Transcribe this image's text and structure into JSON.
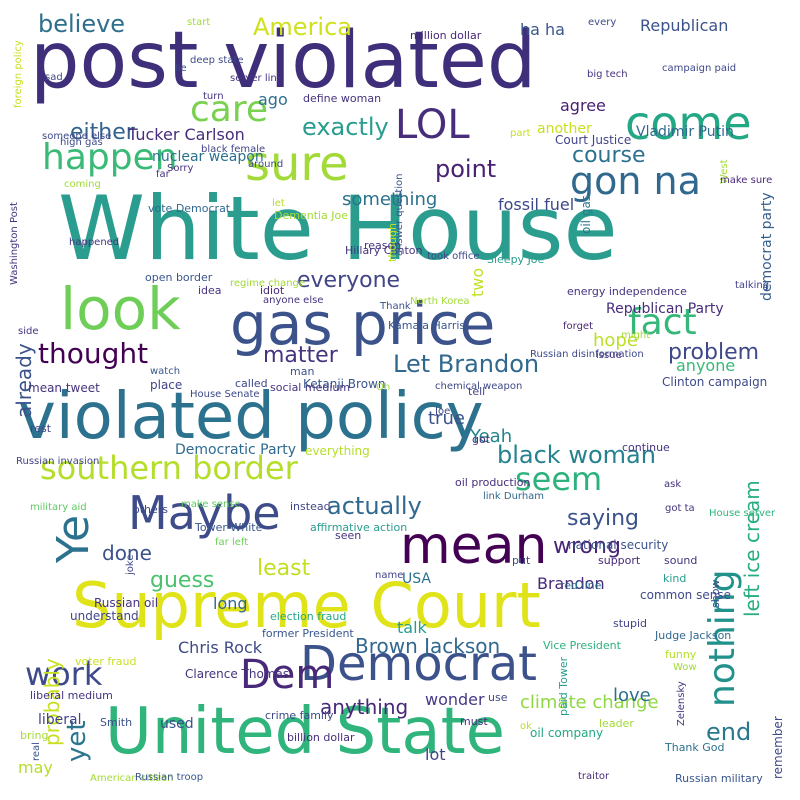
{
  "words": [
    {
      "text": "White House",
      "color": "#2a9d8f",
      "v": 0
    },
    {
      "text": "post violated",
      "color": "#3f2f7a",
      "v": 0
    },
    {
      "text": "violated policy",
      "color": "#2c728e",
      "v": 0
    },
    {
      "text": "Supreme Court",
      "color": "#dfe318",
      "v": 0
    },
    {
      "text": "United State",
      "color": "#2fb47c",
      "v": 0
    },
    {
      "text": "gas price",
      "color": "#3b528b",
      "v": 0
    },
    {
      "text": "sure",
      "color": "#a2da37",
      "v": 0
    },
    {
      "text": "look",
      "color": "#6ece58",
      "v": 0
    },
    {
      "text": "mean",
      "color": "#440154",
      "v": 0
    },
    {
      "text": "Maybe",
      "color": "#3e4c8a",
      "v": 0
    },
    {
      "text": "Democrat",
      "color": "#3b528b",
      "v": 0
    },
    {
      "text": "nothing",
      "color": "#21918c",
      "v": 1
    },
    {
      "text": "come",
      "color": "#22a884",
      "v": 0
    },
    {
      "text": "LOL",
      "color": "#472d7b",
      "v": 0
    },
    {
      "text": "care",
      "color": "#7ad151",
      "v": 0
    },
    {
      "text": "happen",
      "color": "#3aba76",
      "v": 0
    },
    {
      "text": "gon na",
      "color": "#31688e",
      "v": 0
    },
    {
      "text": "fact",
      "color": "#35b779",
      "v": 0
    },
    {
      "text": "southern border",
      "color": "#b5de2b",
      "v": 0
    },
    {
      "text": "Ye",
      "color": "#2c728e",
      "v": 1
    },
    {
      "text": "seem",
      "color": "#2db27d",
      "v": 0
    },
    {
      "text": "Dem",
      "color": "#482878",
      "v": 0
    },
    {
      "text": "work",
      "color": "#3f4a8a",
      "v": 0
    },
    {
      "text": "thought",
      "color": "#440154",
      "v": 0
    },
    {
      "text": "Let Brandon",
      "color": "#31688e",
      "v": 0
    },
    {
      "text": "black woman",
      "color": "#26828e",
      "v": 0
    },
    {
      "text": "matter",
      "color": "#46337f",
      "v": 0
    },
    {
      "text": "everyone",
      "color": "#414487",
      "v": 0
    },
    {
      "text": "point",
      "color": "#482173",
      "v": 0
    },
    {
      "text": "exactly",
      "color": "#2a9d8f",
      "v": 0
    },
    {
      "text": "either",
      "color": "#33638d",
      "v": 0
    },
    {
      "text": "America",
      "color": "#d0e11c",
      "v": 0
    },
    {
      "text": "believe",
      "color": "#2e6f8e",
      "v": 0
    },
    {
      "text": "course",
      "color": "#2c728e",
      "v": 0
    },
    {
      "text": "problem",
      "color": "#3e4989",
      "v": 0
    },
    {
      "text": "actually",
      "color": "#31688e",
      "v": 0
    },
    {
      "text": "saying",
      "color": "#3b528b",
      "v": 0
    },
    {
      "text": "wrong",
      "color": "#482475",
      "v": 0
    },
    {
      "text": "least",
      "color": "#c2df23",
      "v": 0
    },
    {
      "text": "guess",
      "color": "#4ac16d",
      "v": 0
    },
    {
      "text": "probably",
      "color": "#c8e020",
      "v": 1
    },
    {
      "text": "already",
      "color": "#3b528b",
      "v": 1
    },
    {
      "text": "left ice cream",
      "color": "#27ad81",
      "v": 1
    },
    {
      "text": "yet",
      "color": "#2a768e",
      "v": 1
    },
    {
      "text": "done",
      "color": "#3b528b",
      "v": 0
    },
    {
      "text": "Brown Jackson",
      "color": "#31688e",
      "v": 0
    },
    {
      "text": "Chris Rock",
      "color": "#3e4989",
      "v": 0
    },
    {
      "text": "anything",
      "color": "#482878",
      "v": 0
    },
    {
      "text": "climate change",
      "color": "#8fd744",
      "v": 0
    },
    {
      "text": "wonder",
      "color": "#443983",
      "v": 0
    },
    {
      "text": "end",
      "color": "#2a788e",
      "v": 0
    },
    {
      "text": "love",
      "color": "#2d708e",
      "v": 0
    },
    {
      "text": "Yeah",
      "color": "#25848e",
      "v": 0
    },
    {
      "text": "true",
      "color": "#3b528b",
      "v": 0
    },
    {
      "text": "hope",
      "color": "#bddf26",
      "v": 0
    },
    {
      "text": "anyone",
      "color": "#38b977",
      "v": 0
    },
    {
      "text": "something",
      "color": "#2c728e",
      "v": 0
    },
    {
      "text": "fossil fuel",
      "color": "#3e4989",
      "v": 0
    },
    {
      "text": "democrat party",
      "color": "#355f8d",
      "v": 1
    },
    {
      "text": "agree",
      "color": "#481f70",
      "v": 0
    },
    {
      "text": "Republican",
      "color": "#3b528b",
      "v": 0
    },
    {
      "text": "Republican Party",
      "color": "#472d7b",
      "v": 0
    },
    {
      "text": "Vladimir Putin",
      "color": "#31688e",
      "v": 0
    },
    {
      "text": "Tucker Carlson",
      "color": "#472d7b",
      "v": 0
    },
    {
      "text": "ha ha",
      "color": "#39568c",
      "v": 0
    },
    {
      "text": "ago",
      "color": "#2d708e",
      "v": 0
    },
    {
      "text": "two",
      "color": "#c2df23",
      "v": 1
    },
    {
      "text": "USA",
      "color": "#2c728e",
      "v": 0
    },
    {
      "text": "Brandon",
      "color": "#482878",
      "v": 0
    },
    {
      "text": "long",
      "color": "#31688e",
      "v": 0
    },
    {
      "text": "talk",
      "color": "#2a9d8f",
      "v": 0
    },
    {
      "text": "lot",
      "color": "#414487",
      "v": 0
    },
    {
      "text": "may",
      "color": "#b5de2b",
      "v": 0
    },
    {
      "text": "remember",
      "color": "#3e4989",
      "v": 1
    },
    {
      "text": "used",
      "color": "#3b528b",
      "v": 0
    },
    {
      "text": "Democratic Party",
      "color": "#2f6b8e",
      "v": 0
    },
    {
      "text": "Ketanji Brown",
      "color": "#39568c",
      "v": 0
    },
    {
      "text": "Clinton campaign",
      "color": "#3e4989",
      "v": 0
    },
    {
      "text": "Hillary Clinton",
      "color": "#46337f",
      "v": 0
    },
    {
      "text": "oil gas",
      "color": "#2a788e",
      "v": 1
    },
    {
      "text": "another",
      "color": "#c8e020",
      "v": 0
    },
    {
      "text": "Court Justice",
      "color": "#414487",
      "v": 0
    },
    {
      "text": "million dollar",
      "color": "#482878",
      "v": 0
    },
    {
      "text": "national security",
      "color": "#3b528b",
      "v": 0
    },
    {
      "text": "oil company",
      "color": "#22a884",
      "v": 0
    },
    {
      "text": "billion dollar",
      "color": "#472d7b",
      "v": 0
    },
    {
      "text": "crime family",
      "color": "#3e4989",
      "v": 0
    },
    {
      "text": "Clarence Thomas",
      "color": "#46337f",
      "v": 0
    },
    {
      "text": "liberal",
      "color": "#414487",
      "v": 0
    },
    {
      "text": "nuclear weapon",
      "color": "#2c728e",
      "v": 0
    },
    {
      "text": "vote Democrat",
      "color": "#31688e",
      "v": 0
    },
    {
      "text": "open border",
      "color": "#39568c",
      "v": 0
    },
    {
      "text": "idea",
      "color": "#46337f",
      "v": 0
    },
    {
      "text": "idiot",
      "color": "#482878",
      "v": 0
    },
    {
      "text": "define woman",
      "color": "#46337f",
      "v": 0
    },
    {
      "text": "understand",
      "color": "#414487",
      "v": 0
    },
    {
      "text": "Russian oil",
      "color": "#46337f",
      "v": 0
    },
    {
      "text": "liberal medium",
      "color": "#46337f",
      "v": 0
    },
    {
      "text": "election fraud",
      "color": "#22a884",
      "v": 0
    },
    {
      "text": "former President",
      "color": "#39568c",
      "v": 0
    },
    {
      "text": "Vice President",
      "color": "#2db27d",
      "v": 0
    },
    {
      "text": "Judge Jackson",
      "color": "#31688e",
      "v": 0
    },
    {
      "text": "common sense",
      "color": "#3e4989",
      "v": 0
    },
    {
      "text": "red line",
      "color": "#2c728e",
      "v": 0
    },
    {
      "text": "sound",
      "color": "#46337f",
      "v": 0
    },
    {
      "text": "support",
      "color": "#482878",
      "v": 0
    },
    {
      "text": "put",
      "color": "#414487",
      "v": 0
    },
    {
      "text": "must",
      "color": "#472d7b",
      "v": 0
    },
    {
      "text": "Thank God",
      "color": "#2d708e",
      "v": 0
    },
    {
      "text": "Russian military",
      "color": "#39568c",
      "v": 0
    },
    {
      "text": "mean tweet",
      "color": "#46337f",
      "v": 0
    },
    {
      "text": "called",
      "color": "#3e4989",
      "v": 0
    },
    {
      "text": "place",
      "color": "#414487",
      "v": 0
    },
    {
      "text": "social medium",
      "color": "#46337f",
      "v": 0
    },
    {
      "text": "man",
      "color": "#3b528b",
      "v": 0
    },
    {
      "text": "tell",
      "color": "#414487",
      "v": 0
    },
    {
      "text": "got",
      "color": "#472d7b",
      "v": 0
    },
    {
      "text": "rest",
      "color": "#414487",
      "v": 0
    },
    {
      "text": "everything",
      "color": "#b5de2b",
      "v": 0
    },
    {
      "text": "others",
      "color": "#3e4989",
      "v": 0
    },
    {
      "text": "instead",
      "color": "#414487",
      "v": 0
    },
    {
      "text": "make sense",
      "color": "#5ec962",
      "v": 0
    },
    {
      "text": "affirmative action",
      "color": "#2a9d8f",
      "v": 0
    },
    {
      "text": "oil production",
      "color": "#472d7b",
      "v": 0
    },
    {
      "text": "link Durham",
      "color": "#31688e",
      "v": 0
    },
    {
      "text": "Russian invasion",
      "color": "#414487",
      "v": 0
    },
    {
      "text": "military aid",
      "color": "#5ec962",
      "v": 0
    },
    {
      "text": "Tower White",
      "color": "#39568c",
      "v": 0
    },
    {
      "text": "far left",
      "color": "#6ece58",
      "v": 0
    },
    {
      "text": "joke",
      "color": "#3e4989",
      "v": 1
    },
    {
      "text": "name",
      "color": "#414487",
      "v": 0
    },
    {
      "text": "seen",
      "color": "#46337f",
      "v": 0
    },
    {
      "text": "kind",
      "color": "#2a9d8f",
      "v": 0
    },
    {
      "text": "show",
      "color": "#3e4989",
      "v": 1
    },
    {
      "text": "stupid",
      "color": "#414487",
      "v": 0
    },
    {
      "text": "funny",
      "color": "#b5de2b",
      "v": 0
    },
    {
      "text": "Wow",
      "color": "#a2da37",
      "v": 0
    },
    {
      "text": "Zelensky",
      "color": "#46337f",
      "v": 1
    },
    {
      "text": "Smith",
      "color": "#3b528b",
      "v": 0
    },
    {
      "text": "real",
      "color": "#3b528b",
      "v": 1
    },
    {
      "text": "bring",
      "color": "#a2da37",
      "v": 0
    },
    {
      "text": "voter fraud",
      "color": "#c8e020",
      "v": 0
    },
    {
      "text": "American citizen",
      "color": "#a2da37",
      "v": 0
    },
    {
      "text": "Russian troop",
      "color": "#39568c",
      "v": 0
    },
    {
      "text": "leader",
      "color": "#a2da37",
      "v": 0
    },
    {
      "text": "ok",
      "color": "#b5de2b",
      "v": 0
    },
    {
      "text": "use",
      "color": "#3e4989",
      "v": 0
    },
    {
      "text": "traitor",
      "color": "#472d7b",
      "v": 0
    },
    {
      "text": "paid Tower",
      "color": "#2a9d8f",
      "v": 1
    },
    {
      "text": "House server",
      "color": "#2fb47c",
      "v": 0
    },
    {
      "text": "got ta",
      "color": "#46337f",
      "v": 0
    },
    {
      "text": "ask",
      "color": "#46337f",
      "v": 0
    },
    {
      "text": "continue",
      "color": "#46337f",
      "v": 0
    },
    {
      "text": "Joe",
      "color": "#3e4989",
      "v": 0
    },
    {
      "text": "Oh",
      "color": "#a2da37",
      "v": 0
    },
    {
      "text": "chemical weapon",
      "color": "#3e4989",
      "v": 0
    },
    {
      "text": "House Senate",
      "color": "#3e4989",
      "v": 0
    },
    {
      "text": "watch",
      "color": "#39568c",
      "v": 0
    },
    {
      "text": "issue",
      "color": "#46337f",
      "v": 0
    },
    {
      "text": "Russian disinformation",
      "color": "#3e4989",
      "v": 0
    },
    {
      "text": "might",
      "color": "#a2da37",
      "v": 0
    },
    {
      "text": "forget",
      "color": "#482878",
      "v": 0
    },
    {
      "text": "energy independence",
      "color": "#46337f",
      "v": 0
    },
    {
      "text": "North Korea",
      "color": "#a2da37",
      "v": 0
    },
    {
      "text": "Sleepy Joe",
      "color": "#2a9d8f",
      "v": 0
    },
    {
      "text": "talking",
      "color": "#414487",
      "v": 0
    },
    {
      "text": "Thank",
      "color": "#3b528b",
      "v": 0
    },
    {
      "text": "Kamala Harris",
      "color": "#39568c",
      "v": 0
    },
    {
      "text": "anyone else",
      "color": "#46337f",
      "v": 0
    },
    {
      "text": "regime change",
      "color": "#a2da37",
      "v": 0
    },
    {
      "text": "took office",
      "color": "#3e4989",
      "v": 0
    },
    {
      "text": "reason",
      "color": "#46337f",
      "v": 0
    },
    {
      "text": "though",
      "color": "#c2df23",
      "v": 1
    },
    {
      "text": "let",
      "color": "#b5de2b",
      "v": 0
    },
    {
      "text": "Dementia Joe",
      "color": "#a2da37",
      "v": 0
    },
    {
      "text": "Washington Post",
      "color": "#46337f",
      "v": 1
    },
    {
      "text": "happened",
      "color": "#46337f",
      "v": 0
    },
    {
      "text": "coming",
      "color": "#a2da37",
      "v": 0
    },
    {
      "text": "far",
      "color": "#46337f",
      "v": 0
    },
    {
      "text": "black female",
      "color": "#414487",
      "v": 0
    },
    {
      "text": "Sorry",
      "color": "#46337f",
      "v": 0
    },
    {
      "text": "around",
      "color": "#3e4989",
      "v": 0
    },
    {
      "text": "West",
      "color": "#a2da37",
      "v": 1
    },
    {
      "text": "make sure",
      "color": "#482878",
      "v": 0
    },
    {
      "text": "answer question",
      "color": "#39568c",
      "v": 1
    },
    {
      "text": "part",
      "color": "#c8e020",
      "v": 0
    },
    {
      "text": "big tech",
      "color": "#46337f",
      "v": 0
    },
    {
      "text": "every",
      "color": "#3e4989",
      "v": 0
    },
    {
      "text": "campaign paid",
      "color": "#3e4989",
      "v": 0
    },
    {
      "text": "start",
      "color": "#a2da37",
      "v": 0
    },
    {
      "text": "deep state",
      "color": "#3e4989",
      "v": 0
    },
    {
      "text": "turn",
      "color": "#46337f",
      "v": 0
    },
    {
      "text": "lie",
      "color": "#3e4989",
      "v": 0
    },
    {
      "text": "server link",
      "color": "#46337f",
      "v": 0
    },
    {
      "text": "sad",
      "color": "#3e4989",
      "v": 0
    },
    {
      "text": "someone else",
      "color": "#3e4989",
      "v": 0
    },
    {
      "text": "high gas",
      "color": "#3e4989",
      "v": 0
    },
    {
      "text": "foreign policy",
      "color": "#c8e020",
      "v": 1
    },
    {
      "text": "side",
      "color": "#46337f",
      "v": 0
    }
  ]
}
